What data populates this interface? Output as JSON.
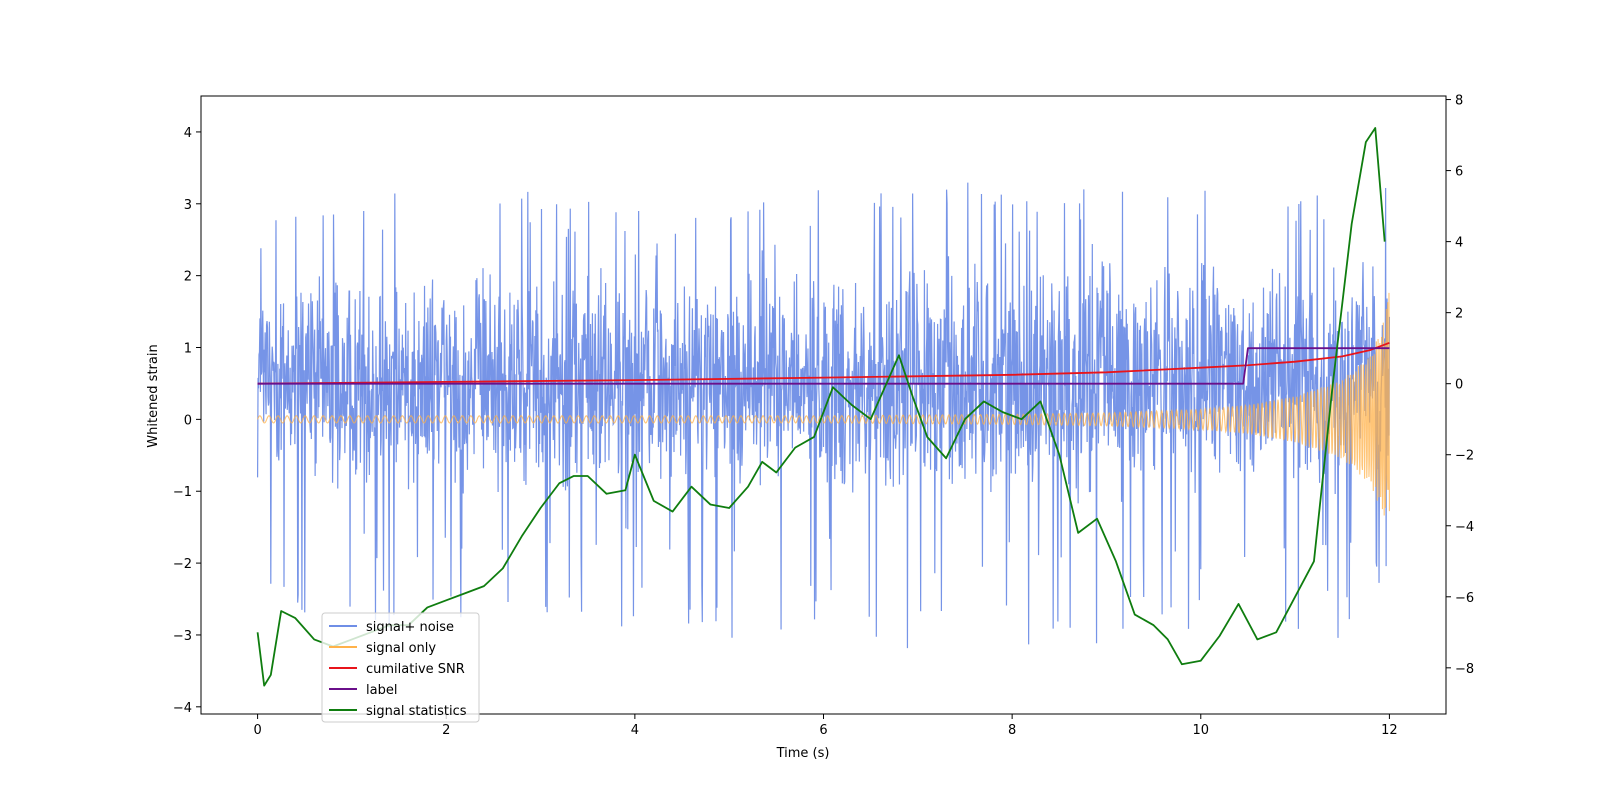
{
  "chart_data": {
    "type": "line",
    "title": "",
    "xlabel": "Time (s)",
    "ylabel": "Whitened strain",
    "y2label": "",
    "xlim": [
      -0.6,
      12.6
    ],
    "ylim": [
      -4.1,
      4.5
    ],
    "y2lim": [
      -9.3,
      8.1
    ],
    "xticks": [
      0,
      2,
      4,
      6,
      8,
      10,
      12
    ],
    "yticks": [
      4,
      3,
      2,
      1,
      0,
      -1,
      -2,
      -3,
      -4
    ],
    "y2ticks": [
      8,
      6,
      4,
      2,
      0,
      -2,
      -4,
      -6,
      -8
    ],
    "xtick_labels": [
      "0",
      "2",
      "4",
      "6",
      "8",
      "10",
      "12"
    ],
    "ytick_labels": [
      "4",
      "3",
      "2",
      "1",
      "0",
      "−1",
      "−2",
      "−3",
      "−4"
    ],
    "y2tick_labels": [
      "8",
      "6",
      "4",
      "2",
      "0",
      "−2",
      "−4",
      "−6",
      "−8"
    ],
    "grid": false,
    "legend_position": "lower-left",
    "series": [
      {
        "name": "signal+ noise",
        "axis": "left",
        "color": "#6f8ee6",
        "style": "dense noise",
        "x": [
          0,
          0.5,
          1,
          1.5,
          2,
          2.5,
          3,
          3.5,
          4,
          4.5,
          5,
          5.5,
          6,
          6.5,
          7,
          7.5,
          8,
          8.5,
          9,
          9.5,
          10,
          10.5,
          11,
          11.5,
          12
        ],
        "upper": [
          2.9,
          2.8,
          2.9,
          3.4,
          3.4,
          3.1,
          3.4,
          3.3,
          2.9,
          2.9,
          2.8,
          3.1,
          3.2,
          3.1,
          3.6,
          3.3,
          3.2,
          3.3,
          3.2,
          3.2,
          3.2,
          3.0,
          3.0,
          3.3,
          4.1
        ],
        "lower": [
          -3.0,
          -3.1,
          -3.0,
          -2.9,
          -2.7,
          -2.9,
          -3.0,
          -3.3,
          -2.8,
          -2.9,
          -3.2,
          -3.0,
          -3.1,
          -3.2,
          -3.3,
          -3.4,
          -3.2,
          -3.2,
          -3.6,
          -3.0,
          -3.1,
          -3.0,
          -3.0,
          -3.1,
          -2.3
        ]
      },
      {
        "name": "signal only",
        "axis": "left",
        "color": "#ffb24a",
        "style": "chirp",
        "x": [
          0,
          1,
          2,
          3,
          4,
          5,
          6,
          7,
          8,
          9,
          10,
          10.5,
          11,
          11.5,
          11.8,
          11.95,
          12
        ],
        "amplitude": [
          0.05,
          0.05,
          0.05,
          0.05,
          0.05,
          0.05,
          0.05,
          0.06,
          0.07,
          0.09,
          0.14,
          0.2,
          0.32,
          0.55,
          0.9,
          1.4,
          1.8
        ]
      },
      {
        "name": "cumilative SNR",
        "axis": "right",
        "color": "#e8141b",
        "x": [
          0,
          2,
          4,
          6,
          8,
          9,
          10,
          10.5,
          11,
          11.5,
          11.8,
          12
        ],
        "y": [
          0.0,
          0.05,
          0.1,
          0.17,
          0.25,
          0.32,
          0.45,
          0.52,
          0.62,
          0.77,
          0.95,
          1.15
        ]
      },
      {
        "name": "label",
        "axis": "right",
        "color": "#6a0f8a",
        "x": [
          0,
          10.45,
          10.5,
          12
        ],
        "y": [
          0,
          0,
          1,
          1
        ]
      },
      {
        "name": "signal statistics",
        "axis": "right",
        "color": "#0f7d0f",
        "x": [
          0,
          0.07,
          0.14,
          0.25,
          0.4,
          0.6,
          0.8,
          1.0,
          1.2,
          1.4,
          1.6,
          1.8,
          2.0,
          2.2,
          2.4,
          2.6,
          2.8,
          3.0,
          3.2,
          3.35,
          3.5,
          3.7,
          3.9,
          4.0,
          4.2,
          4.4,
          4.6,
          4.8,
          5.0,
          5.2,
          5.35,
          5.5,
          5.7,
          5.9,
          6.1,
          6.3,
          6.5,
          6.65,
          6.8,
          6.95,
          7.1,
          7.3,
          7.5,
          7.7,
          7.9,
          8.1,
          8.3,
          8.5,
          8.7,
          8.9,
          9.1,
          9.3,
          9.5,
          9.65,
          9.8,
          10.0,
          10.2,
          10.4,
          10.6,
          10.8,
          11.0,
          11.2,
          11.4,
          11.6,
          11.75,
          11.85,
          11.95
        ],
        "y": [
          -7.0,
          -8.5,
          -8.2,
          -6.4,
          -6.6,
          -7.2,
          -7.4,
          -7.2,
          -7.0,
          -6.8,
          -6.8,
          -6.3,
          -6.1,
          -5.9,
          -5.7,
          -5.2,
          -4.3,
          -3.5,
          -2.8,
          -2.6,
          -2.6,
          -3.1,
          -3.0,
          -2.0,
          -3.3,
          -3.6,
          -2.9,
          -3.4,
          -3.5,
          -2.9,
          -2.2,
          -2.5,
          -1.8,
          -1.5,
          -0.1,
          -0.6,
          -1.0,
          -0.1,
          0.8,
          -0.4,
          -1.5,
          -2.1,
          -1.0,
          -0.5,
          -0.8,
          -1.0,
          -0.5,
          -2.0,
          -4.2,
          -3.8,
          -5.0,
          -6.5,
          -6.8,
          -7.2,
          -7.9,
          -7.8,
          -7.1,
          -6.2,
          -7.2,
          -7.0,
          -6.0,
          -5.0,
          0.0,
          4.5,
          6.8,
          7.2,
          4.0
        ]
      }
    ]
  }
}
